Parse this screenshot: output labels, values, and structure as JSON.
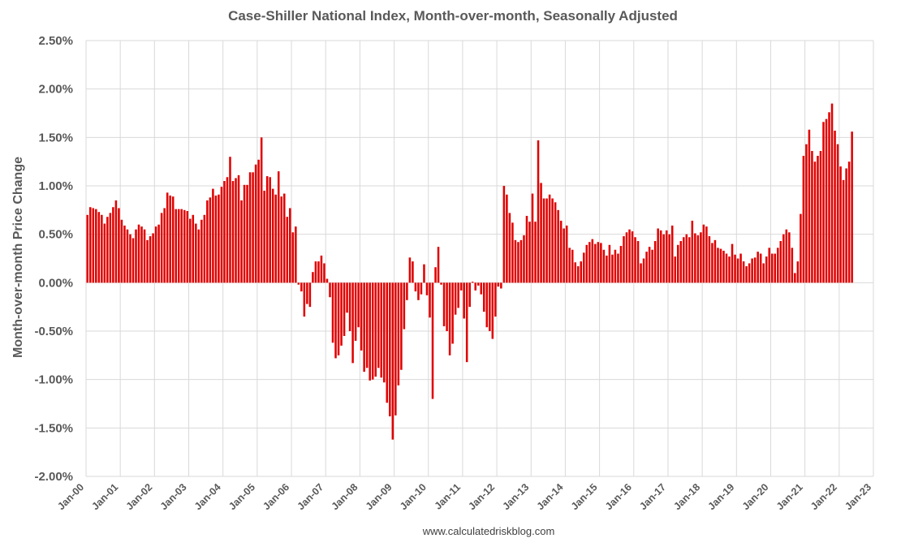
{
  "chart_data": {
    "type": "bar",
    "title": "Case-Shiller National Index, Month-over-month, Seasonally Adjusted",
    "xlabel": "",
    "ylabel": "Month-over-month Price Change",
    "source": "www.calculatedriskblog.com",
    "ylim": [
      -2.0,
      2.5
    ],
    "y_ticks": [
      "2.50%",
      "2.00%",
      "1.50%",
      "1.00%",
      "0.50%",
      "0.00%",
      "-0.50%",
      "-1.00%",
      "-1.50%",
      "-2.00%"
    ],
    "x_ticks": [
      "Jan-00",
      "Jan-01",
      "Jan-02",
      "Jan-03",
      "Jan-04",
      "Jan-05",
      "Jan-06",
      "Jan-07",
      "Jan-08",
      "Jan-09",
      "Jan-10",
      "Jan-11",
      "Jan-12",
      "Jan-13",
      "Jan-14",
      "Jan-15",
      "Jan-16",
      "Jan-17",
      "Jan-18",
      "Jan-19",
      "Jan-20",
      "Jan-21",
      "Jan-22",
      "Jan-23"
    ],
    "grid": true,
    "legend": "none",
    "color": "#e00000",
    "x_start": "Jan-00",
    "frequency": "monthly",
    "series": [
      {
        "values": [
          0.7,
          0.78,
          0.77,
          0.76,
          0.73,
          0.7,
          0.61,
          0.68,
          0.72,
          0.78,
          0.85,
          0.77,
          0.65,
          0.59,
          0.55,
          0.5,
          0.46,
          0.55,
          0.6,
          0.58,
          0.55,
          0.44,
          0.48,
          0.51,
          0.58,
          0.6,
          0.72,
          0.77,
          0.93,
          0.9,
          0.89,
          0.76,
          0.76,
          0.76,
          0.75,
          0.74,
          0.66,
          0.7,
          0.61,
          0.55,
          0.65,
          0.7,
          0.85,
          0.88,
          0.97,
          0.9,
          0.91,
          0.99,
          1.05,
          1.09,
          1.3,
          1.05,
          1.08,
          1.11,
          0.85,
          1.01,
          1.01,
          1.14,
          1.14,
          1.22,
          1.27,
          1.5,
          0.95,
          1.1,
          1.09,
          0.97,
          0.91,
          1.15,
          0.89,
          0.92,
          0.68,
          0.77,
          0.52,
          0.58,
          -0.02,
          -0.09,
          -0.35,
          -0.22,
          -0.25,
          0.11,
          0.22,
          0.22,
          0.28,
          0.2,
          0.04,
          -0.15,
          -0.62,
          -0.78,
          -0.75,
          -0.65,
          -0.55,
          -0.31,
          -0.5,
          -0.83,
          -0.6,
          -0.46,
          -0.7,
          -0.92,
          -0.88,
          -1.01,
          -1.0,
          -0.97,
          -0.88,
          -0.98,
          -1.03,
          -1.24,
          -1.38,
          -1.62,
          -1.37,
          -1.06,
          -0.9,
          -0.48,
          -0.18,
          0.26,
          0.22,
          -0.09,
          -0.18,
          -0.12,
          0.19,
          -0.13,
          -0.36,
          -1.2,
          0.16,
          0.37,
          -0.02,
          -0.45,
          -0.5,
          -0.75,
          -0.63,
          -0.33,
          -0.26,
          -0.08,
          -0.37,
          -0.82,
          -0.25,
          0.01,
          -0.08,
          -0.03,
          -0.12,
          -0.3,
          -0.46,
          -0.5,
          -0.58,
          -0.35,
          -0.04,
          -0.06,
          1.0,
          0.91,
          0.72,
          0.62,
          0.44,
          0.42,
          0.44,
          0.49,
          0.69,
          0.63,
          0.92,
          0.63,
          1.47,
          1.03,
          0.87,
          0.87,
          0.91,
          0.87,
          0.83,
          0.75,
          0.64,
          0.56,
          0.59,
          0.36,
          0.34,
          0.21,
          0.17,
          0.22,
          0.31,
          0.39,
          0.42,
          0.45,
          0.4,
          0.42,
          0.41,
          0.34,
          0.28,
          0.39,
          0.29,
          0.34,
          0.3,
          0.38,
          0.48,
          0.52,
          0.55,
          0.53,
          0.47,
          0.43,
          0.2,
          0.25,
          0.32,
          0.37,
          0.34,
          0.43,
          0.56,
          0.54,
          0.5,
          0.54,
          0.5,
          0.59,
          0.27,
          0.39,
          0.43,
          0.47,
          0.5,
          0.47,
          0.64,
          0.51,
          0.49,
          0.52,
          0.6,
          0.58,
          0.48,
          0.41,
          0.44,
          0.36,
          0.35,
          0.33,
          0.3,
          0.27,
          0.4,
          0.29,
          0.25,
          0.3,
          0.22,
          0.17,
          0.2,
          0.25,
          0.26,
          0.32,
          0.3,
          0.2,
          0.27,
          0.36,
          0.3,
          0.3,
          0.36,
          0.43,
          0.5,
          0.55,
          0.52,
          0.36,
          0.1,
          0.22,
          0.71,
          1.31,
          1.43,
          1.58,
          1.36,
          1.25,
          1.31,
          1.36,
          1.66,
          1.69,
          1.76,
          1.85,
          1.57,
          1.43,
          1.2,
          1.06,
          1.18,
          1.25,
          1.56
        ]
      }
    ]
  }
}
